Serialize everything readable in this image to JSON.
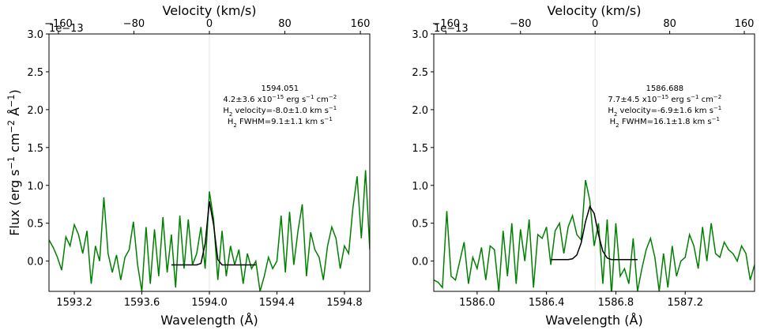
{
  "chart_data": [
    {
      "type": "line",
      "x2label": "Velocity (km/s)",
      "xlabel": "Wavelength (Å)",
      "ylabel": [
        {
          "text": "Flux (erg s"
        },
        {
          "text": "−1",
          "pos": "sup"
        },
        {
          "text": " cm"
        },
        {
          "text": "−2",
          "pos": "sup"
        },
        {
          "text": " Å"
        },
        {
          "text": "−1",
          "pos": "sup"
        },
        {
          "text": ")"
        }
      ],
      "offset_text": "1e−13",
      "xlim": [
        1593.05,
        1594.95
      ],
      "xticks": [
        1593.2,
        1593.6,
        {
          "value": 1594.0,
          "label": "1594.0"
        },
        1594.4,
        1594.8
      ],
      "x2lim": [
        -170,
        170
      ],
      "x2ticks": [
        {
          "value": -160,
          "label": "−160"
        },
        {
          "value": -80,
          "label": "−80"
        },
        0,
        80,
        160
      ],
      "ylim": [
        -0.4,
        3.0
      ],
      "yticks": [
        {
          "value": 0,
          "label": "0.0"
        },
        0.5,
        {
          "value": 1,
          "label": "1.0"
        },
        1.5,
        {
          "value": 2,
          "label": "2.0"
        },
        2.5,
        {
          "value": 3,
          "label": "3.0"
        }
      ],
      "annotation": [
        [
          {
            "text": "1594.051"
          }
        ],
        [
          {
            "text": "4.2±3.6 x10"
          },
          {
            "text": "−15",
            "pos": "sup"
          },
          {
            "text": " erg s"
          },
          {
            "text": "−1",
            "pos": "sup"
          },
          {
            "text": " cm"
          },
          {
            "text": "−2",
            "pos": "sup"
          }
        ],
        [
          {
            "text": "H"
          },
          {
            "text": "2",
            "pos": "sub"
          },
          {
            "text": " velocity=-8.0±1.0 km s"
          },
          {
            "text": "−1",
            "pos": "sup"
          }
        ],
        [
          {
            "text": "H"
          },
          {
            "text": "2",
            "pos": "sub"
          },
          {
            "text": " FWHM=9.1±1.1 km s"
          },
          {
            "text": "−1",
            "pos": "sup"
          }
        ]
      ],
      "series": [
        {
          "color": "#008000",
          "x": [
            1593.05,
            1593.075,
            1593.1,
            1593.125,
            1593.15,
            1593.175,
            1593.2,
            1593.225,
            1593.25,
            1593.275,
            1593.3,
            1593.325,
            1593.35,
            1593.375,
            1593.4,
            1593.425,
            1593.45,
            1593.475,
            1593.5,
            1593.525,
            1593.55,
            1593.575,
            1593.6,
            1593.625,
            1593.65,
            1593.675,
            1593.7,
            1593.725,
            1593.75,
            1593.775,
            1593.8,
            1593.825,
            1593.85,
            1593.875,
            1593.9,
            1593.925,
            1593.95,
            1593.975,
            1594.0,
            1594.025,
            1594.05,
            1594.075,
            1594.1,
            1594.125,
            1594.15,
            1594.175,
            1594.2,
            1594.225,
            1594.25,
            1594.275,
            1594.3,
            1594.325,
            1594.35,
            1594.375,
            1594.4,
            1594.425,
            1594.45,
            1594.475,
            1594.5,
            1594.525,
            1594.55,
            1594.575,
            1594.6,
            1594.625,
            1594.65,
            1594.675,
            1594.7,
            1594.725,
            1594.75,
            1594.775,
            1594.8,
            1594.825,
            1594.85,
            1594.875,
            1594.9,
            1594.925,
            1594.95
          ],
          "values": [
            0.28,
            0.18,
            0.05,
            -0.12,
            0.32,
            0.2,
            0.48,
            0.35,
            0.1,
            0.4,
            -0.3,
            0.2,
            0.0,
            0.84,
            0.1,
            -0.15,
            0.08,
            -0.25,
            0.05,
            0.15,
            0.52,
            -0.05,
            -0.4,
            0.45,
            -0.3,
            0.42,
            -0.2,
            0.58,
            -0.15,
            0.35,
            -0.35,
            0.6,
            -0.1,
            0.55,
            -0.05,
            0.1,
            0.45,
            -0.1,
            0.92,
            0.55,
            -0.25,
            0.4,
            -0.2,
            0.2,
            -0.05,
            0.15,
            -0.3,
            0.1,
            -0.1,
            0.0,
            -0.4,
            -0.2,
            0.05,
            -0.1,
            0.0,
            0.6,
            -0.15,
            0.65,
            -0.05,
            0.4,
            0.75,
            -0.2,
            0.38,
            0.15,
            0.05,
            -0.25,
            0.2,
            0.45,
            0.3,
            -0.1,
            0.2,
            0.1,
            0.7,
            1.12,
            0.3,
            1.2,
            0.15
          ]
        },
        {
          "color": "#000000",
          "x": [
            1593.775,
            1593.8,
            1593.825,
            1593.85,
            1593.875,
            1593.9,
            1593.925,
            1593.95,
            1593.975,
            1594.0,
            1594.025,
            1594.05,
            1594.075,
            1594.1,
            1594.125,
            1594.15,
            1594.175,
            1594.2,
            1594.225,
            1594.25,
            1594.275
          ],
          "values": [
            -0.05,
            -0.05,
            -0.05,
            -0.05,
            -0.05,
            -0.05,
            -0.05,
            -0.03,
            0.23,
            0.79,
            0.48,
            0.02,
            -0.05,
            -0.05,
            -0.05,
            -0.05,
            -0.05,
            -0.05,
            -0.05,
            -0.05,
            -0.05
          ]
        }
      ]
    },
    {
      "type": "line",
      "x2label": "Velocity (km/s)",
      "xlabel": "Wavelength (Å)",
      "offset_text": "1e−13",
      "xlim": [
        1585.75,
        1587.6
      ],
      "xticks": [
        {
          "value": 1586.0,
          "label": "1586.0"
        },
        1586.4,
        1586.8,
        1587.2
      ],
      "x2lim": [
        -173,
        171
      ],
      "x2ticks": [
        {
          "value": -160,
          "label": "−160"
        },
        {
          "value": -80,
          "label": "−80"
        },
        0,
        80,
        160
      ],
      "ylim": [
        -0.4,
        3.0
      ],
      "yticks": [
        {
          "value": 0,
          "label": "0.0"
        },
        0.5,
        {
          "value": 1,
          "label": "1.0"
        },
        1.5,
        {
          "value": 2,
          "label": "2.0"
        },
        2.5,
        {
          "value": 3,
          "label": "3.0"
        }
      ],
      "annotation": [
        [
          {
            "text": "1586.688"
          }
        ],
        [
          {
            "text": "7.7±4.5 x10"
          },
          {
            "text": "−15",
            "pos": "sup"
          },
          {
            "text": " erg s"
          },
          {
            "text": "−1",
            "pos": "sup"
          },
          {
            "text": " cm"
          },
          {
            "text": "−2",
            "pos": "sup"
          }
        ],
        [
          {
            "text": "H"
          },
          {
            "text": "2",
            "pos": "sub"
          },
          {
            "text": " velocity=-6.9±1.6 km s"
          },
          {
            "text": "−1",
            "pos": "sup"
          }
        ],
        [
          {
            "text": "H"
          },
          {
            "text": "2",
            "pos": "sub"
          },
          {
            "text": " FWHM=16.1±1.8 km s"
          },
          {
            "text": "−1",
            "pos": "sup"
          }
        ]
      ],
      "series": [
        {
          "color": "#008000",
          "x": [
            1585.75,
            1585.775,
            1585.8,
            1585.825,
            1585.85,
            1585.875,
            1585.9,
            1585.925,
            1585.95,
            1585.975,
            1586.0,
            1586.025,
            1586.05,
            1586.075,
            1586.1,
            1586.125,
            1586.15,
            1586.175,
            1586.2,
            1586.225,
            1586.25,
            1586.275,
            1586.3,
            1586.325,
            1586.35,
            1586.375,
            1586.4,
            1586.425,
            1586.45,
            1586.475,
            1586.5,
            1586.525,
            1586.55,
            1586.575,
            1586.6,
            1586.625,
            1586.65,
            1586.675,
            1586.7,
            1586.725,
            1586.75,
            1586.775,
            1586.8,
            1586.825,
            1586.85,
            1586.875,
            1586.9,
            1586.925,
            1586.95,
            1586.975,
            1587.0,
            1587.025,
            1587.05,
            1587.075,
            1587.1,
            1587.125,
            1587.15,
            1587.175,
            1587.2,
            1587.225,
            1587.25,
            1587.275,
            1587.3,
            1587.325,
            1587.35,
            1587.375,
            1587.4,
            1587.425,
            1587.45,
            1587.475,
            1587.5,
            1587.525,
            1587.55,
            1587.575,
            1587.6
          ],
          "values": [
            -0.25,
            -0.28,
            -0.35,
            0.66,
            -0.2,
            -0.25,
            0.0,
            0.25,
            -0.3,
            0.05,
            -0.1,
            0.18,
            -0.25,
            0.2,
            0.15,
            -0.4,
            0.4,
            -0.2,
            0.5,
            -0.3,
            0.42,
            0.0,
            0.55,
            -0.35,
            0.35,
            0.3,
            0.45,
            -0.05,
            0.4,
            0.5,
            0.1,
            0.45,
            0.6,
            0.35,
            0.28,
            1.07,
            0.8,
            0.2,
            0.5,
            -0.3,
            0.55,
            -0.45,
            0.5,
            -0.2,
            -0.1,
            -0.3,
            0.3,
            -0.4,
            -0.1,
            0.15,
            0.3,
            0.05,
            -0.4,
            0.1,
            -0.35,
            0.2,
            -0.2,
            0.0,
            0.05,
            0.35,
            0.2,
            -0.1,
            0.45,
            0.0,
            0.5,
            0.1,
            0.05,
            0.25,
            0.15,
            0.1,
            0.0,
            0.2,
            0.1,
            -0.25,
            -0.05
          ]
        },
        {
          "color": "#000000",
          "x": [
            1586.425,
            1586.45,
            1586.475,
            1586.5,
            1586.525,
            1586.55,
            1586.575,
            1586.6,
            1586.625,
            1586.65,
            1586.675,
            1586.7,
            1586.725,
            1586.75,
            1586.775,
            1586.8,
            1586.825,
            1586.85,
            1586.875,
            1586.9,
            1586.925
          ],
          "values": [
            0.02,
            0.02,
            0.02,
            0.02,
            0.02,
            0.03,
            0.08,
            0.24,
            0.52,
            0.72,
            0.63,
            0.35,
            0.13,
            0.04,
            0.02,
            0.02,
            0.02,
            0.02,
            0.02,
            0.02,
            0.02
          ]
        }
      ]
    }
  ]
}
